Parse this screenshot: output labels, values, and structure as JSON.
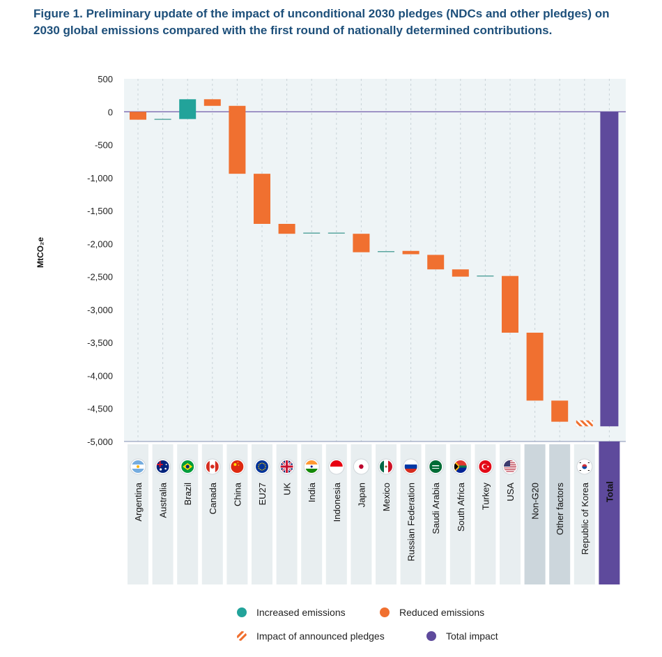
{
  "title": "Figure 1. Preliminary update of the impact of unconditional 2030 pledges (NDCs and other pledges) on 2030 global emissions compared with the first round of nationally determined contributions.",
  "chart_data": {
    "type": "bar",
    "subtype": "waterfall",
    "ylabel": "MtCO₂e",
    "ylim": [
      -5000,
      500
    ],
    "yticks": [
      "500",
      "0",
      "-500",
      "-1,000",
      "-1,500",
      "-2,000",
      "-2,500",
      "-3,000",
      "-3,500",
      "-4,000",
      "-4,500",
      "-5,000"
    ],
    "grid": true,
    "categories": [
      "Argentina",
      "Australia",
      "Brazil",
      "Canada",
      "China",
      "EU27",
      "UK",
      "India",
      "Indonesia",
      "Japan",
      "Mexico",
      "Russian Federation",
      "Saudi Arabia",
      "South Africa",
      "Turkey",
      "USA",
      "Non-G20",
      "Other factors",
      "Republic of Korea",
      "Total"
    ],
    "bars": [
      {
        "start": 0,
        "end": -120,
        "kind": "reduced"
      },
      {
        "start": -115,
        "end": -115,
        "kind": "neutral"
      },
      {
        "start": -110,
        "end": 190,
        "kind": "increased"
      },
      {
        "start": 190,
        "end": 90,
        "kind": "reduced"
      },
      {
        "start": 90,
        "end": -940,
        "kind": "reduced"
      },
      {
        "start": -940,
        "end": -1700,
        "kind": "reduced"
      },
      {
        "start": -1700,
        "end": -1850,
        "kind": "reduced"
      },
      {
        "start": -1840,
        "end": -1840,
        "kind": "neutral"
      },
      {
        "start": -1840,
        "end": -1840,
        "kind": "neutral"
      },
      {
        "start": -1850,
        "end": -2130,
        "kind": "reduced"
      },
      {
        "start": -2120,
        "end": -2120,
        "kind": "neutral"
      },
      {
        "start": -2110,
        "end": -2160,
        "kind": "reduced"
      },
      {
        "start": -2170,
        "end": -2390,
        "kind": "reduced"
      },
      {
        "start": -2390,
        "end": -2500,
        "kind": "reduced"
      },
      {
        "start": -2490,
        "end": -2490,
        "kind": "neutral"
      },
      {
        "start": -2490,
        "end": -3350,
        "kind": "reduced"
      },
      {
        "start": -3350,
        "end": -4380,
        "kind": "reduced"
      },
      {
        "start": -4380,
        "end": -4700,
        "kind": "reduced"
      },
      {
        "start": -4680,
        "end": -4770,
        "kind": "announced"
      },
      {
        "start": 0,
        "end": -4770,
        "kind": "total"
      }
    ],
    "highlighted_categories": [
      "Non-G20",
      "Other factors",
      "Total"
    ],
    "legend": [
      {
        "label": "Increased emissions",
        "kind": "increased"
      },
      {
        "label": "Reduced emissions",
        "kind": "reduced"
      },
      {
        "label": "Impact of announced pledges",
        "kind": "announced"
      },
      {
        "label": "Total impact",
        "kind": "total"
      }
    ],
    "legend_position": "bottom"
  },
  "colors": {
    "increased": "#22a39a",
    "reduced": "#f07030",
    "announced": "#f07030",
    "total": "#5e4a9c",
    "neutral": "#5aa6a0",
    "plot_bg": "#eef4f6",
    "cat_bg": "#e8eef0",
    "cat_bg_dark": "#ccd6dc",
    "zero_line": "#6e5aa8"
  },
  "flags": [
    "argentina-flag-icon",
    "australia-flag-icon",
    "brazil-flag-icon",
    "canada-flag-icon",
    "china-flag-icon",
    "eu-flag-icon",
    "uk-flag-icon",
    "india-flag-icon",
    "indonesia-flag-icon",
    "japan-flag-icon",
    "mexico-flag-icon",
    "russia-flag-icon",
    "saudi-arabia-flag-icon",
    "south-africa-flag-icon",
    "turkey-flag-icon",
    "usa-flag-icon",
    "",
    "",
    "korea-flag-icon",
    ""
  ]
}
